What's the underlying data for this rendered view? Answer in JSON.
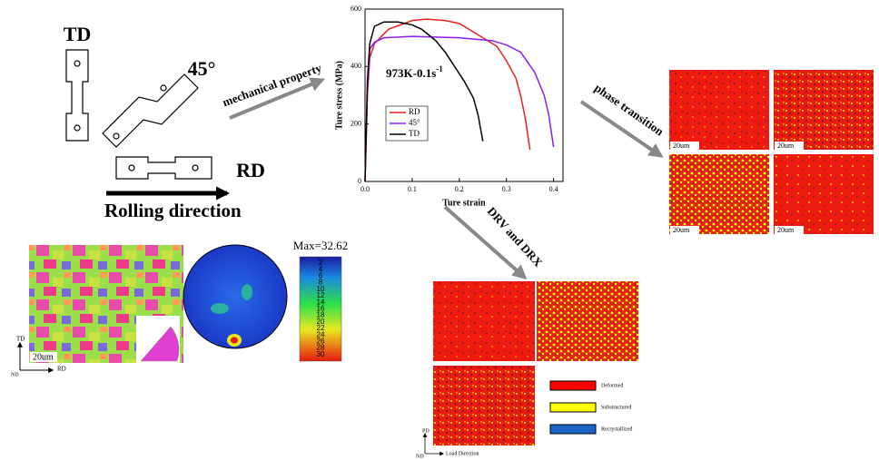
{
  "specimens": {
    "td": "TD",
    "diag": "45°",
    "rd": "RD",
    "rolling": "Rolling direction"
  },
  "arrows": {
    "mechanical": "mechanical property",
    "phase": "phase transition",
    "drv": "DRV and DRX"
  },
  "chart_data": {
    "type": "line",
    "annotation": "973K-0.1s",
    "annotation_exponent": "-1",
    "x_label": "Ture strain",
    "y_label": "Ture stress (MPa)",
    "xlim": [
      0,
      0.42
    ],
    "ylim": [
      0,
      600
    ],
    "xticks": [
      {
        "value": 0,
        "label": "0.0"
      },
      0.1,
      0.2,
      0.3,
      0.4
    ],
    "yticks": [
      0,
      200,
      400,
      600
    ],
    "series": [
      {
        "name": "RD",
        "color": "#e8211c",
        "x": [
          0,
          0.005,
          0.01,
          0.02,
          0.05,
          0.1,
          0.13,
          0.17,
          0.2,
          0.25,
          0.28,
          0.3,
          0.32,
          0.33,
          0.34,
          0.35
        ],
        "values": [
          0,
          300,
          430,
          480,
          530,
          560,
          565,
          560,
          550,
          500,
          470,
          420,
          360,
          300,
          220,
          110
        ]
      },
      {
        "name": "45°",
        "color": "#8a1ef0",
        "x": [
          0,
          0.005,
          0.01,
          0.02,
          0.04,
          0.1,
          0.2,
          0.27,
          0.3,
          0.33,
          0.36,
          0.38,
          0.39,
          0.4
        ],
        "values": [
          0,
          320,
          460,
          485,
          500,
          505,
          500,
          490,
          475,
          450,
          380,
          300,
          230,
          120
        ]
      },
      {
        "name": "TD",
        "color": "#000000",
        "x": [
          0,
          0.005,
          0.01,
          0.02,
          0.04,
          0.07,
          0.1,
          0.12,
          0.15,
          0.17,
          0.19,
          0.21,
          0.23,
          0.24,
          0.25
        ],
        "values": [
          0,
          350,
          480,
          540,
          555,
          555,
          545,
          530,
          490,
          450,
          400,
          350,
          290,
          230,
          140
        ]
      }
    ]
  },
  "phase_maps": {
    "scale": [
      "20um",
      "20um",
      "20um",
      "20um"
    ]
  },
  "texture": {
    "scale": "20um",
    "axis_td": "TD",
    "axis_rd": "RD",
    "axis_nd": "ND",
    "max": "Max=32.62",
    "colorbar": [
      2,
      4,
      6,
      8,
      10,
      12,
      14,
      16,
      18,
      20,
      22,
      24,
      26,
      28,
      30
    ]
  },
  "drx_maps": {
    "legend": [
      {
        "label": "Deformed",
        "color": "#ff0000"
      },
      {
        "label": "Substructured",
        "color": "#ffff00"
      },
      {
        "label": "Recrystallized",
        "color": "#1a64c8"
      }
    ],
    "axis_pd": "PD",
    "axis_nd": "ND",
    "axis_ld": "Load Direction"
  }
}
